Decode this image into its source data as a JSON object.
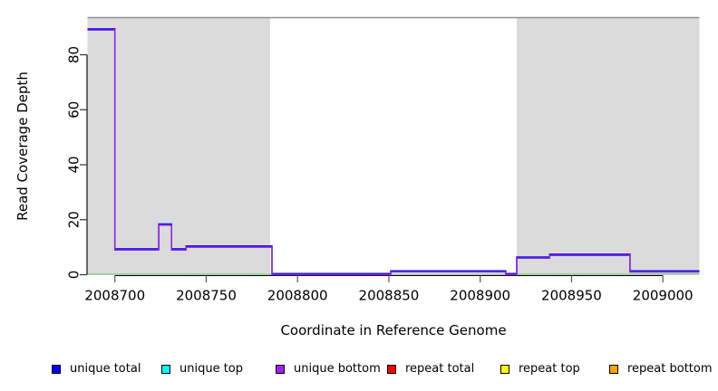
{
  "chart_data": {
    "type": "line",
    "subtype": "step-coverage",
    "title": "",
    "xlabel": "Coordinate in Reference Genome",
    "ylabel": "Read Coverage Depth",
    "xlim": [
      2008685,
      2009020
    ],
    "ylim": [
      0,
      93.5
    ],
    "x_ticks": [
      2008700,
      2008750,
      2008800,
      2008850,
      2008900,
      2008950,
      2009000
    ],
    "y_ticks": [
      0,
      20,
      40,
      60,
      80
    ],
    "grid": false,
    "top_border_color": "#8f8f8f",
    "background_shading": {
      "color": "#dbdbdb",
      "regions": [
        {
          "start": 2008685,
          "end": 2008785
        },
        {
          "start": 2008920,
          "end": 2009020
        }
      ]
    },
    "zero_line": {
      "color": "#74c476",
      "value": 0
    },
    "series": [
      {
        "name": "unique total",
        "color": "#1010ee",
        "steps": [
          [
            2008685,
            2008700,
            89
          ],
          [
            2008700,
            2008724,
            9
          ],
          [
            2008724,
            2008731,
            18
          ],
          [
            2008731,
            2008739,
            9
          ],
          [
            2008739,
            2008786,
            10
          ],
          [
            2008786,
            2008851,
            0
          ],
          [
            2008851,
            2008914,
            1
          ],
          [
            2008914,
            2008920,
            0
          ],
          [
            2008920,
            2008938,
            6
          ],
          [
            2008938,
            2008982,
            7
          ],
          [
            2008982,
            2009020,
            1
          ]
        ]
      },
      {
        "name": "unique bottom",
        "color": "#8a2be2",
        "steps": [
          [
            2008685,
            2008700,
            89
          ],
          [
            2008700,
            2008724,
            9
          ],
          [
            2008724,
            2008731,
            18
          ],
          [
            2008731,
            2008739,
            9
          ],
          [
            2008739,
            2008786,
            10
          ],
          [
            2008786,
            2008851,
            0
          ],
          [
            2008851,
            2008914,
            1
          ],
          [
            2008914,
            2008920,
            0
          ],
          [
            2008920,
            2008938,
            6
          ],
          [
            2008938,
            2008982,
            7
          ],
          [
            2008982,
            2009020,
            1
          ]
        ]
      }
    ],
    "legend": {
      "position": "bottom",
      "items": [
        {
          "label": "unique total",
          "color": "#0000ff"
        },
        {
          "label": "unique top",
          "color": "#00ffff"
        },
        {
          "label": "unique bottom",
          "color": "#a020f0"
        },
        {
          "label": "repeat total",
          "color": "#ff0000"
        },
        {
          "label": "repeat top",
          "color": "#ffff00"
        },
        {
          "label": "repeat bottom",
          "color": "#ffa500"
        }
      ]
    }
  }
}
